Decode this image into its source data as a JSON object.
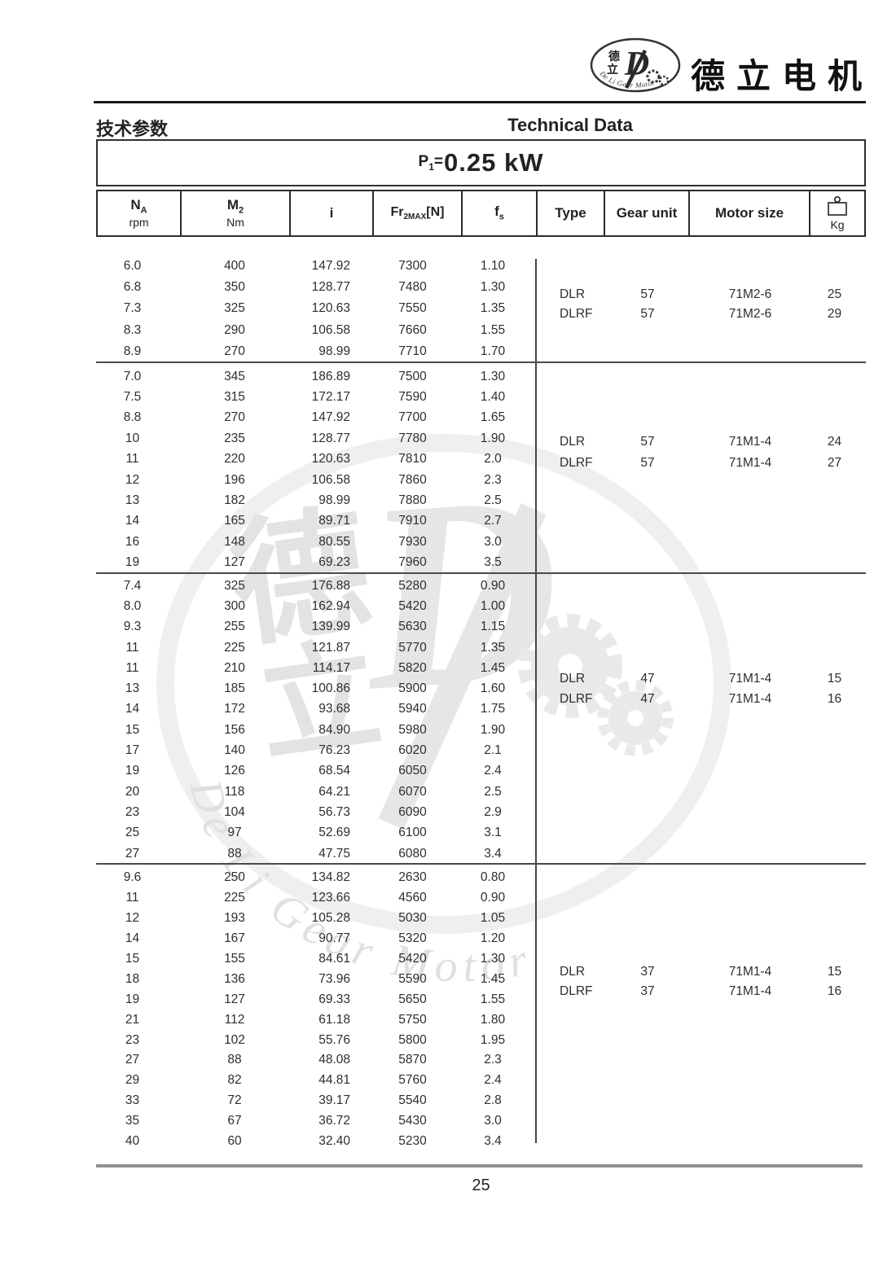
{
  "brand": {
    "name_cn": "德立电机",
    "logo": {
      "cn_top": "德",
      "cn_bottom": "立",
      "d_letter": "D",
      "arc_text": "De Li Gear Motor"
    }
  },
  "titles": {
    "cn": "技术参数",
    "en": "Technical Data"
  },
  "power": {
    "symbol": "P",
    "subscript": "1",
    "equals": "=",
    "value": "0.25 kW"
  },
  "table": {
    "headers": {
      "na": {
        "main": "N",
        "sub_main": "A",
        "unit": "rpm"
      },
      "m2": {
        "main": "M",
        "sub_main": "2",
        "unit": "Nm"
      },
      "i": {
        "main": "i"
      },
      "fr": {
        "main": "Fr",
        "sub_main": "2MAX",
        "bracket": "[N]"
      },
      "fs": {
        "main": "f",
        "sub_main": "s"
      },
      "type": {
        "main": "Type"
      },
      "gear_unit": {
        "main": "Gear unit"
      },
      "motor_size": {
        "main": "Motor size"
      },
      "kg": {
        "icon": "weight-icon",
        "unit": "Kg"
      }
    },
    "blocks": [
      {
        "rows": [
          [
            "6.0",
            "400",
            "147.92",
            "7300",
            "1.10"
          ],
          [
            "6.8",
            "350",
            "128.77",
            "7480",
            "1.30"
          ],
          [
            "7.3",
            "325",
            "120.63",
            "7550",
            "1.35"
          ],
          [
            "8.3",
            "290",
            "106.58",
            "7660",
            "1.55"
          ],
          [
            "8.9",
            "270",
            "98.99",
            "7710",
            "1.70"
          ]
        ],
        "motors": [
          {
            "type": "DLR",
            "gear_unit": "57",
            "motor_size": "71M2-6",
            "kg": "25"
          },
          {
            "type": "DLRF",
            "gear_unit": "57",
            "motor_size": "71M2-6",
            "kg": "29"
          }
        ]
      },
      {
        "rows": [
          [
            "7.0",
            "345",
            "186.89",
            "7500",
            "1.30"
          ],
          [
            "7.5",
            "315",
            "172.17",
            "7590",
            "1.40"
          ],
          [
            "8.8",
            "270",
            "147.92",
            "7700",
            "1.65"
          ],
          [
            "10",
            "235",
            "128.77",
            "7780",
            "1.90"
          ],
          [
            "11",
            "220",
            "120.63",
            "7810",
            "2.0"
          ],
          [
            "12",
            "196",
            "106.58",
            "7860",
            "2.3"
          ],
          [
            "13",
            "182",
            "98.99",
            "7880",
            "2.5"
          ],
          [
            "14",
            "165",
            "89.71",
            "7910",
            "2.7"
          ],
          [
            "16",
            "148",
            "80.55",
            "7930",
            "3.0"
          ],
          [
            "19",
            "127",
            "69.23",
            "7960",
            "3.5"
          ]
        ],
        "motors": [
          {
            "type": "DLR",
            "gear_unit": "57",
            "motor_size": "71M1-4",
            "kg": "24"
          },
          {
            "type": "DLRF",
            "gear_unit": "57",
            "motor_size": "71M1-4",
            "kg": "27"
          }
        ]
      },
      {
        "rows": [
          [
            "7.4",
            "325",
            "176.88",
            "5280",
            "0.90"
          ],
          [
            "8.0",
            "300",
            "162.94",
            "5420",
            "1.00"
          ],
          [
            "9.3",
            "255",
            "139.99",
            "5630",
            "1.15"
          ],
          [
            "11",
            "225",
            "121.87",
            "5770",
            "1.35"
          ],
          [
            "11",
            "210",
            "114.17",
            "5820",
            "1.45"
          ],
          [
            "13",
            "185",
            "100.86",
            "5900",
            "1.60"
          ],
          [
            "14",
            "172",
            "93.68",
            "5940",
            "1.75"
          ],
          [
            "15",
            "156",
            "84.90",
            "5980",
            "1.90"
          ],
          [
            "17",
            "140",
            "76.23",
            "6020",
            "2.1"
          ],
          [
            "19",
            "126",
            "68.54",
            "6050",
            "2.4"
          ],
          [
            "20",
            "118",
            "64.21",
            "6070",
            "2.5"
          ],
          [
            "23",
            "104",
            "56.73",
            "6090",
            "2.9"
          ],
          [
            "25",
            "97",
            "52.69",
            "6100",
            "3.1"
          ],
          [
            "27",
            "88",
            "47.75",
            "6080",
            "3.4"
          ]
        ],
        "motors": [
          {
            "type": "DLR",
            "gear_unit": "47",
            "motor_size": "71M1-4",
            "kg": "15"
          },
          {
            "type": "DLRF",
            "gear_unit": "47",
            "motor_size": "71M1-4",
            "kg": "16"
          }
        ]
      },
      {
        "rows": [
          [
            "9.6",
            "250",
            "134.82",
            "2630",
            "0.80"
          ],
          [
            "11",
            "225",
            "123.66",
            "4560",
            "0.90"
          ],
          [
            "12",
            "193",
            "105.28",
            "5030",
            "1.05"
          ],
          [
            "14",
            "167",
            "90.77",
            "5320",
            "1.20"
          ],
          [
            "15",
            "155",
            "84.61",
            "5420",
            "1.30"
          ],
          [
            "18",
            "136",
            "73.96",
            "5590",
            "1.45"
          ],
          [
            "19",
            "127",
            "69.33",
            "5650",
            "1.55"
          ],
          [
            "21",
            "112",
            "61.18",
            "5750",
            "1.80"
          ],
          [
            "23",
            "102",
            "55.76",
            "5800",
            "1.95"
          ],
          [
            "27",
            "88",
            "48.08",
            "5870",
            "2.3"
          ],
          [
            "29",
            "82",
            "44.81",
            "5760",
            "2.4"
          ],
          [
            "33",
            "72",
            "39.17",
            "5540",
            "2.8"
          ],
          [
            "35",
            "67",
            "36.72",
            "5430",
            "3.0"
          ],
          [
            "40",
            "60",
            "32.40",
            "5230",
            "3.4"
          ]
        ],
        "motors": [
          {
            "type": "DLR",
            "gear_unit": "37",
            "motor_size": "71M1-4",
            "kg": "15"
          },
          {
            "type": "DLRF",
            "gear_unit": "37",
            "motor_size": "71M1-4",
            "kg": "16"
          }
        ]
      }
    ]
  },
  "watermark": {
    "char1": "德",
    "char2": "立",
    "d_letter": "D",
    "arc_text": "De Li Gear Motor"
  },
  "footer": {
    "page_number": "25"
  },
  "colors": {
    "rule": "#1a1a1a",
    "footer_rule": "#8f8f8f",
    "watermark_gray": "#e6e6e6"
  }
}
